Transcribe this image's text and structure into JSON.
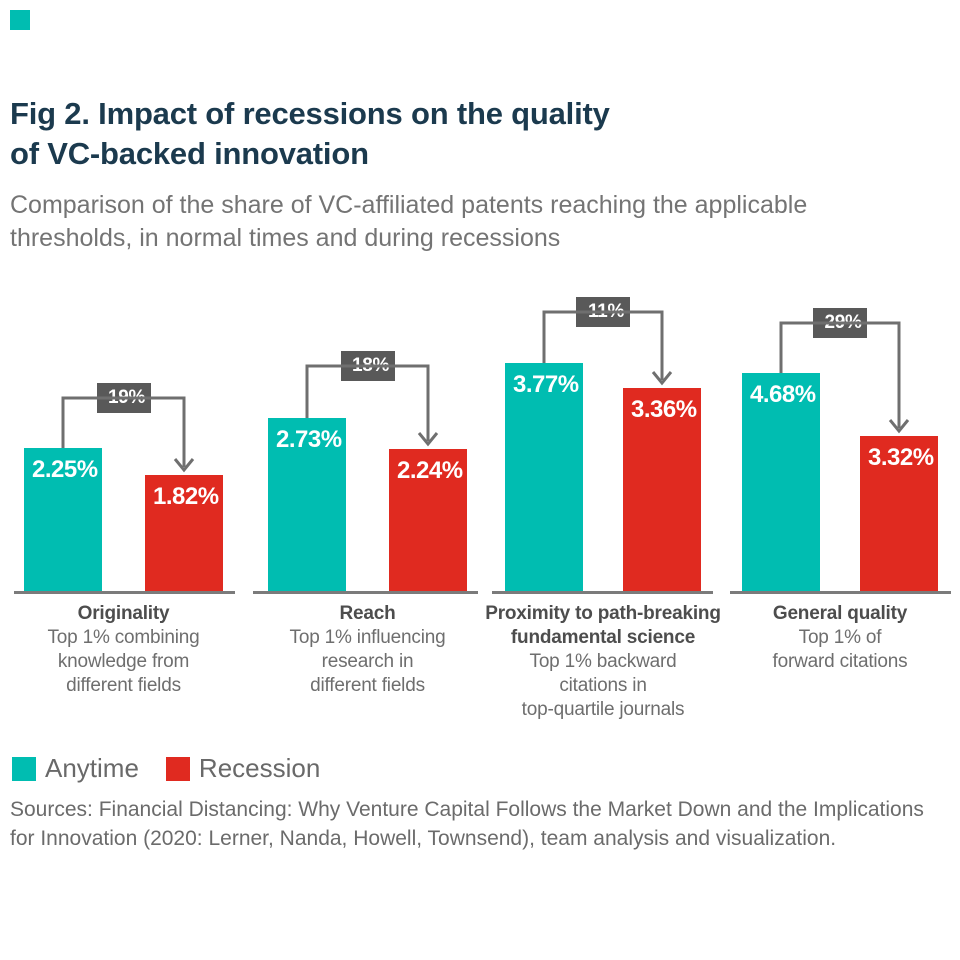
{
  "header": {
    "title_line1": "Fig 2. Impact of recessions on the quality",
    "title_line2": "of VC-backed innovation",
    "subtitle_line1": "Comparison of the share of VC-affiliated patents reaching the applicable",
    "subtitle_line2": "thresholds, in normal times and during recessions"
  },
  "chart_data": {
    "type": "bar",
    "title": "Fig 2. Impact of recessions on the quality of VC-backed innovation",
    "subtitle": "Comparison of the share of VC-affiliated patents reaching the applicable thresholds, in normal times and during recessions",
    "unit": "%",
    "grid": false,
    "legend_position": "bottom-left",
    "categories": [
      "Originality",
      "Reach",
      "Proximity to path-breaking fundamental science",
      "General quality"
    ],
    "category_labels": [
      {
        "title_lines": [
          "Originality"
        ],
        "desc_lines": [
          "Top 1% combining",
          "knowledge from",
          "different fields"
        ]
      },
      {
        "title_lines": [
          "Reach"
        ],
        "desc_lines": [
          "Top 1% influencing",
          "research in",
          "different fields"
        ]
      },
      {
        "title_lines": [
          "Proximity to path-breaking",
          "fundamental science"
        ],
        "desc_lines": [
          "Top 1% backward",
          "citations in",
          "top-quartile journals"
        ]
      },
      {
        "title_lines": [
          "General quality"
        ],
        "desc_lines": [
          "Top 1% of",
          "forward citations"
        ]
      }
    ],
    "series": [
      {
        "name": "Anytime",
        "values": [
          2.25,
          2.73,
          3.77,
          4.68
        ],
        "value_labels": [
          "2.25%",
          "2.73%",
          "3.77%",
          "4.68%"
        ]
      },
      {
        "name": "Recession",
        "values": [
          1.82,
          2.24,
          3.36,
          3.32
        ],
        "value_labels": [
          "1.82%",
          "2.24%",
          "3.36%",
          "3.32%"
        ]
      }
    ],
    "change_labels": [
      "-19%",
      "-18%",
      "-11%",
      "-29%"
    ],
    "colors": {
      "anytime": "#00BDB1",
      "recession": "#E02A20",
      "title_navy": "#1B3A4E",
      "change_box": "#595959",
      "bracket_line": "#6F6F6F",
      "axis_line": "#7B7B7B"
    }
  },
  "legend": {
    "items": [
      {
        "label": "Anytime",
        "color": "#00BDB1"
      },
      {
        "label": "Recession",
        "color": "#E02A20"
      }
    ]
  },
  "footer": {
    "sources_line1": "Sources: Financial Distancing: Why Venture Capital Follows the Market Down and the Implications",
    "sources_line2": "for Innovation (2020: Lerner, Nanda, Howell, Townsend), team analysis and visualization."
  }
}
